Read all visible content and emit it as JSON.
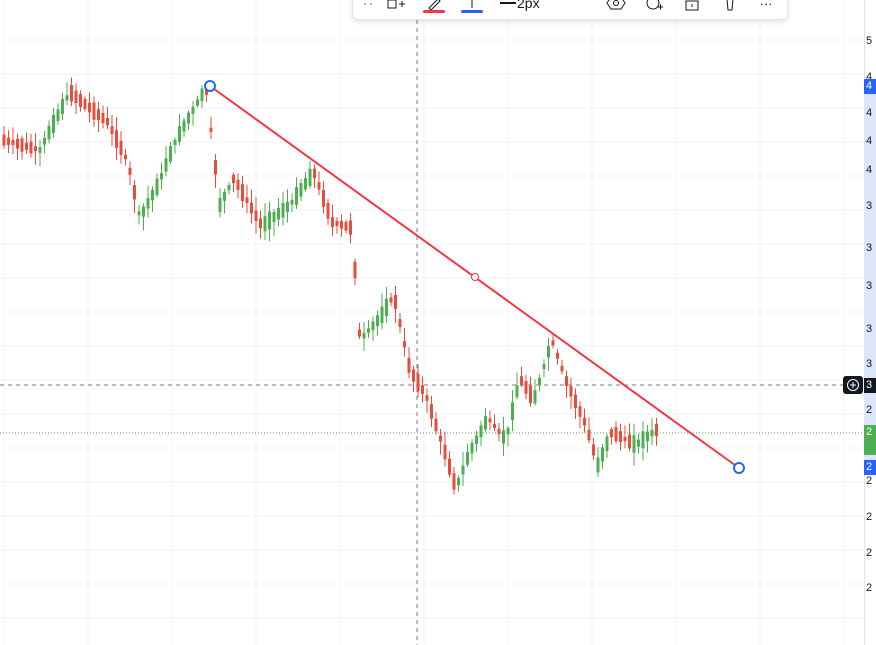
{
  "toolbar": {
    "line_width_label": "2px",
    "more_label": "···",
    "icons": [
      "drag-handle-icon",
      "add-shape-icon",
      "pencil-color-icon",
      "line-style-icon",
      "line-width-icon",
      "template-icon",
      "add-alert-icon",
      "lock-icon",
      "delete-icon",
      "more-icon"
    ],
    "pencil_color": "#f23645",
    "line_color": "#2962ff"
  },
  "price_axis": {
    "labels": [
      "5",
      "4",
      "4",
      "4",
      "4",
      "3",
      "3",
      "3",
      "3",
      "3",
      "2",
      "2",
      "2",
      "2",
      "2",
      "2"
    ],
    "crosshair_tag": "3",
    "last_price_tag": "2",
    "trendline_end_tag": "2",
    "trendline_start_tag": "4",
    "colors": {
      "crosshair": "#131722",
      "last_price": "#4caf50",
      "trendline": "#2962ff",
      "range_fill": "#dce6f8"
    }
  },
  "chart": {
    "trendline_color": "#f23645",
    "up_color": "#4caf50",
    "down_color": "#e74c3c",
    "handle_color": "#2962ff"
  }
}
